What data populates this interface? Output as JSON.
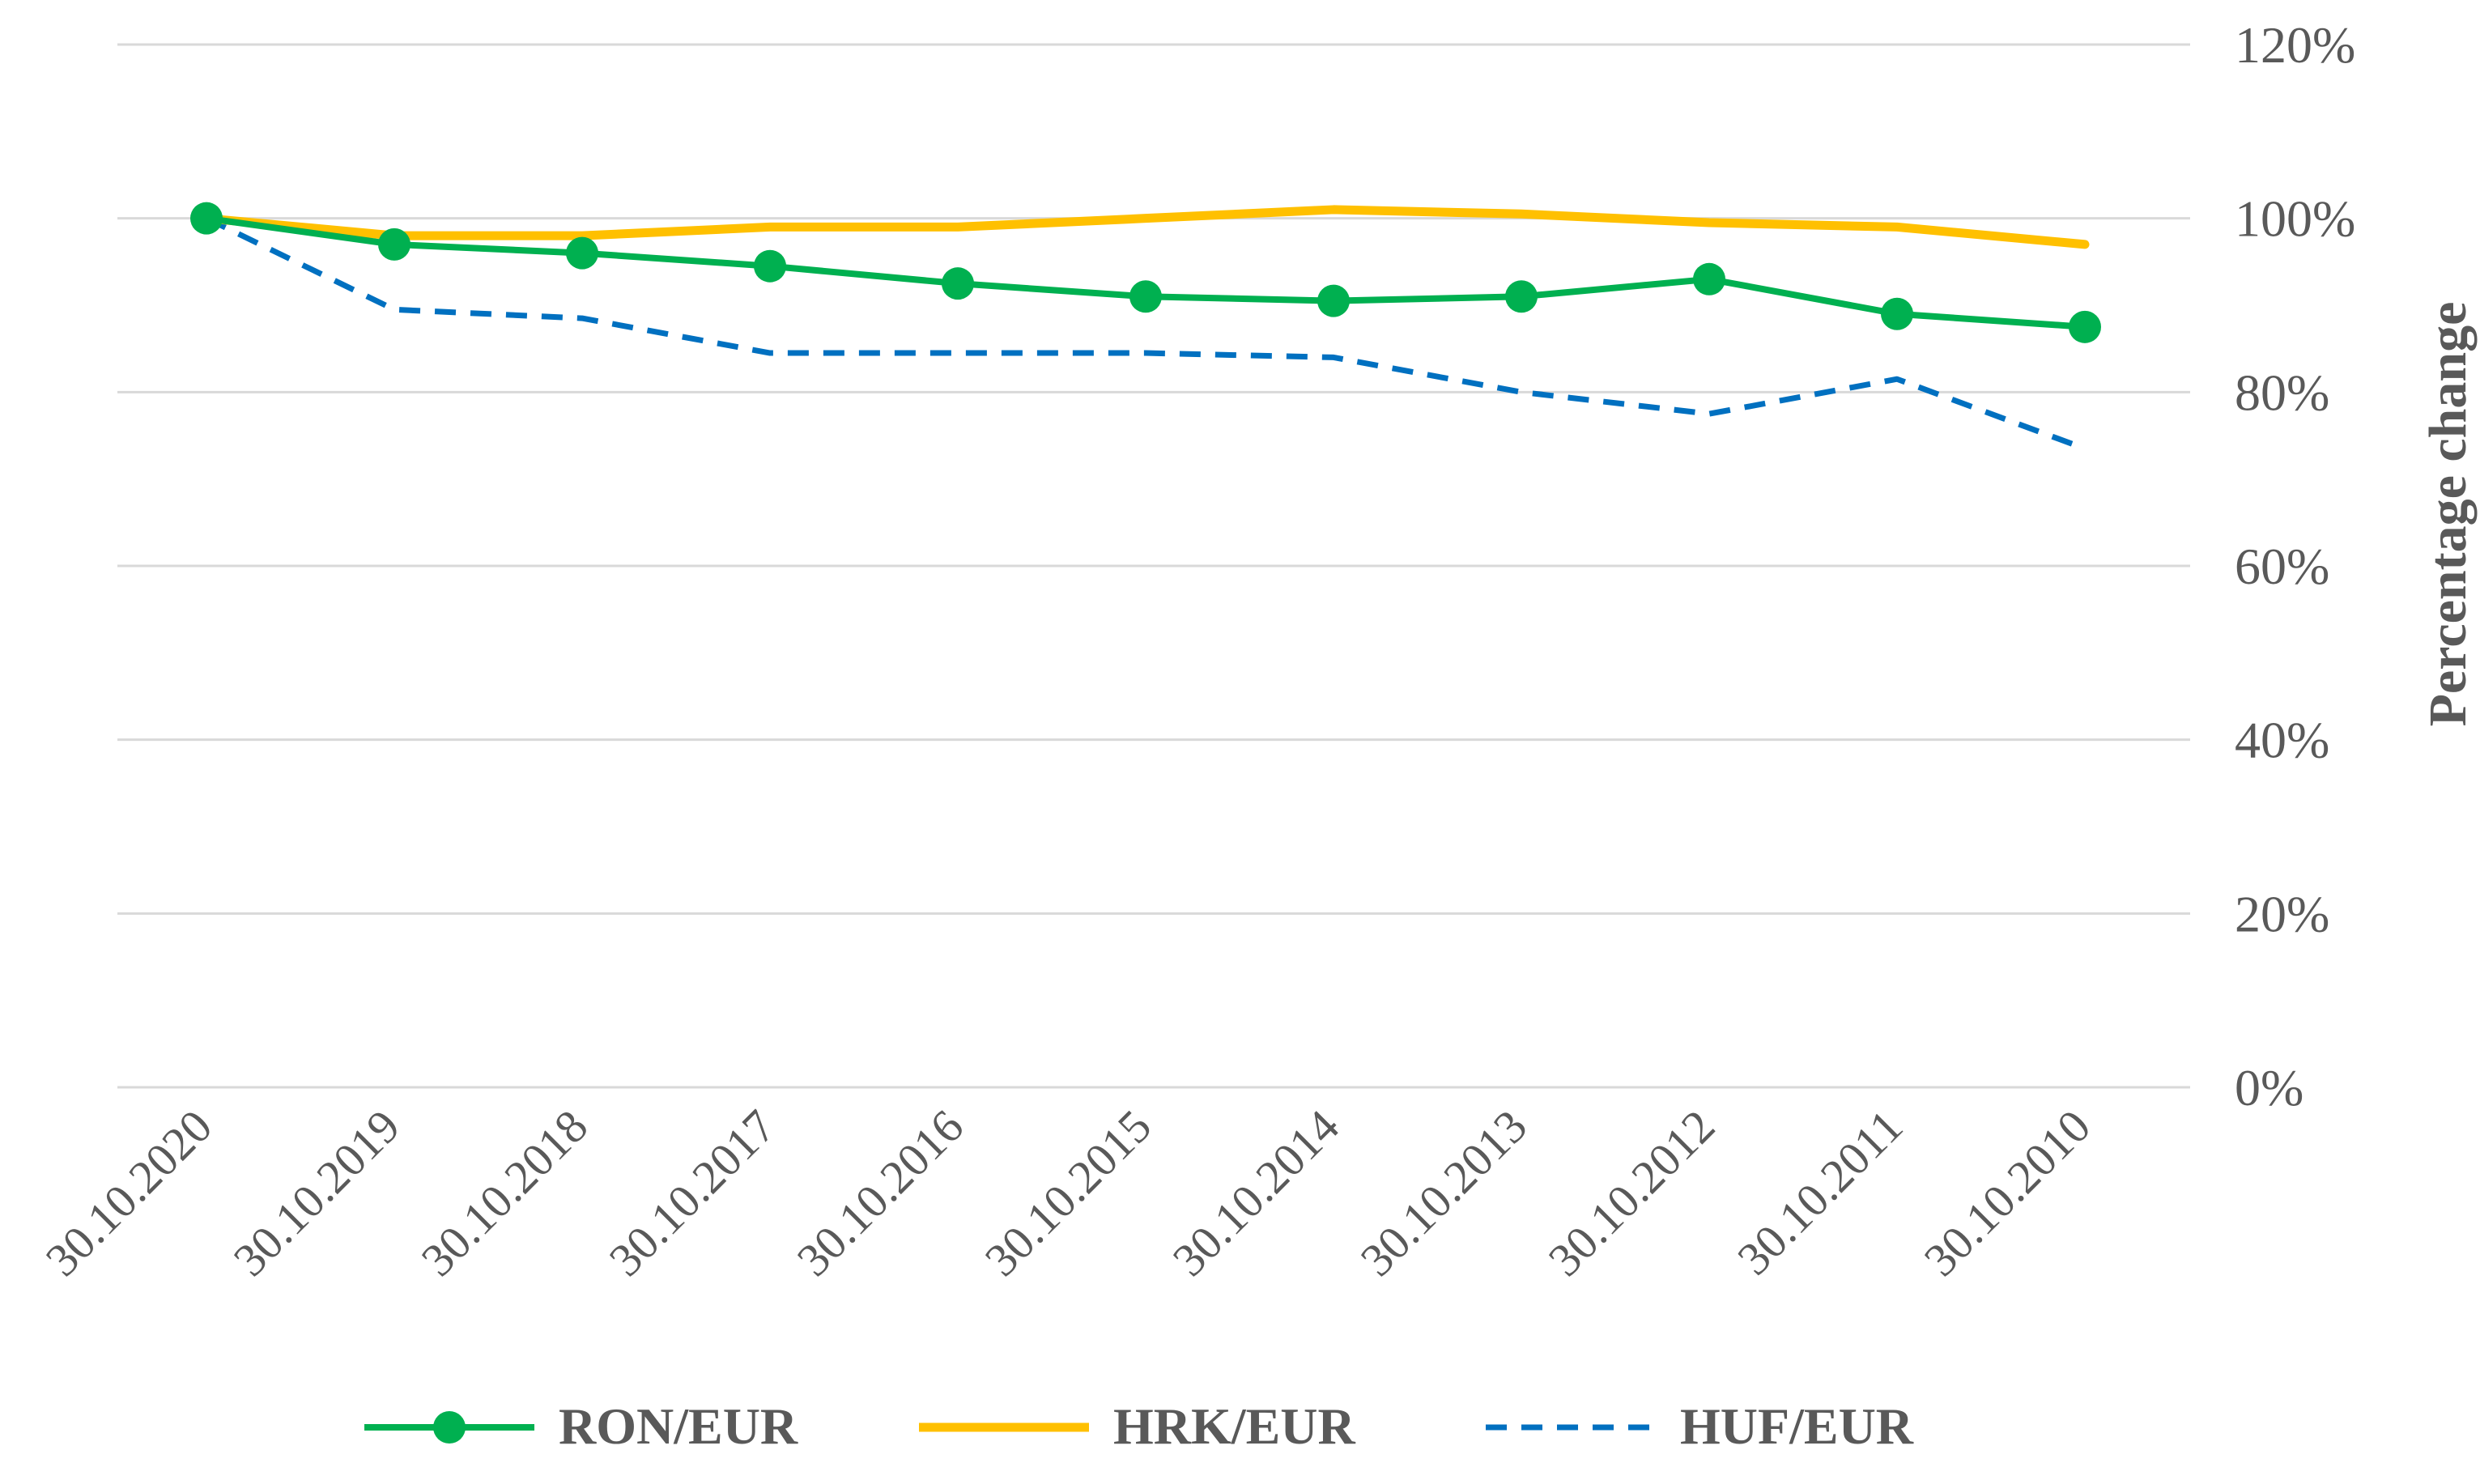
{
  "chart_data": {
    "type": "line",
    "title": "",
    "xlabel": "",
    "ylabel": "Percentage change",
    "ylim": [
      0,
      120
    ],
    "yticks": [
      "0%",
      "20%",
      "40%",
      "60%",
      "80%",
      "100%",
      "120%"
    ],
    "y_axis_position": "right",
    "grid": true,
    "legend_position": "bottom",
    "categories": [
      "30.10.2020",
      "30.10.2019",
      "30.10.2018",
      "30.10.2017",
      "30.10.2016",
      "30.10.2015",
      "30.10.2014",
      "30.10.2013",
      "30.10.2012",
      "30.10.2011",
      "30.10.2010"
    ],
    "series": [
      {
        "name": "RON/EUR",
        "color": "#00b050",
        "style": "solid-markers",
        "values": [
          100,
          97,
          96,
          94.5,
          92.5,
          91,
          90.5,
          91,
          93,
          89,
          87.5
        ]
      },
      {
        "name": "HRK/EUR",
        "color": "#ffc000",
        "style": "solid",
        "values": [
          100,
          98,
          98,
          99,
          99,
          100,
          101,
          100.5,
          99.5,
          99,
          97
        ]
      },
      {
        "name": "HUF/EUR",
        "color": "#0070c0",
        "style": "dashed",
        "values": [
          100,
          89.5,
          88.5,
          84.5,
          84.5,
          84.5,
          84,
          80,
          77.5,
          81.5,
          73.5
        ]
      }
    ]
  }
}
